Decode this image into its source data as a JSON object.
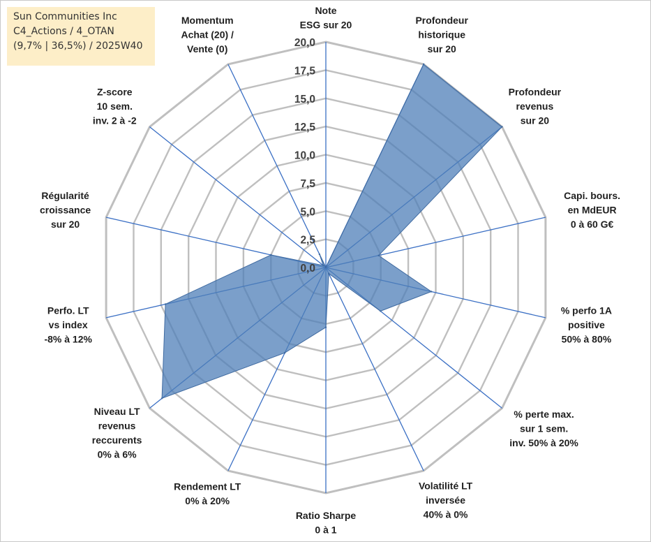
{
  "title_box": {
    "line1": "Sun Communities Inc",
    "line2": "C4_Actions / 4_OTAN",
    "line3": "(9,7% | 36,5%) / 2025W40"
  },
  "chart_data": {
    "type": "radar",
    "title": "",
    "rmin": 0,
    "rmax": 20,
    "tick_step": 2.5,
    "tick_labels": [
      "0,0",
      "2,5",
      "5,0",
      "7,5",
      "10,0",
      "12,5",
      "15,0",
      "17,5",
      "20,0"
    ],
    "grid": true,
    "categories": [
      [
        "Note",
        "ESG sur 20"
      ],
      [
        "Profondeur",
        "historique",
        "sur 20"
      ],
      [
        "Profondeur",
        "revenus",
        "sur 20"
      ],
      [
        "Capi. bours.",
        "en MdEUR",
        "0 à 60 G€"
      ],
      [
        "% perfo 1A",
        "positive",
        "50% à 80%"
      ],
      [
        "% perte max.",
        "sur 1 sem.",
        "inv. 50% à 20%"
      ],
      [
        "Volatilité LT",
        "inversée",
        "40% à 0%"
      ],
      [
        "Ratio Sharpe",
        "0 à 1"
      ],
      [
        "Rendement LT",
        "0% à 20%"
      ],
      [
        "Niveau LT",
        "revenus",
        "reccurents",
        "0% à 6%"
      ],
      [
        "Perfo. LT",
        "vs index",
        "-8% à 12%"
      ],
      [
        "Régularité",
        "croissance",
        "sur 20"
      ],
      [
        "Z-score",
        "10 sem.",
        "inv. 2 à -2"
      ],
      [
        "Momentum",
        "Achat (20) /",
        "Vente (0)"
      ]
    ],
    "series": [
      {
        "values": [
          0,
          20,
          20,
          4.8,
          9.6,
          6.2,
          0.6,
          5.3,
          8.4,
          18.6,
          14.6,
          5.0,
          0.3,
          1.3
        ]
      }
    ],
    "colors": {
      "fill": "#4f7fb8",
      "fill_opacity": 0.75,
      "stroke": "#3f6aa0",
      "grid": "#bfbfbf",
      "axis": "#3a6fc4",
      "title_bg": "#fdeec8"
    }
  }
}
